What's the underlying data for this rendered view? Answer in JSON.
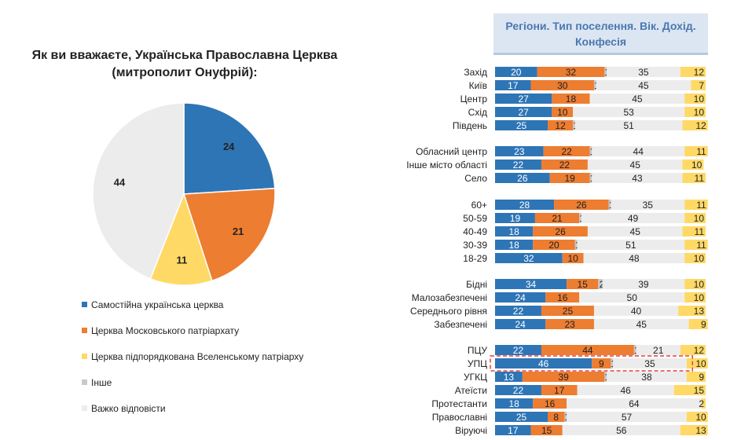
{
  "colors": {
    "independent": "#2e75b6",
    "moscow": "#ed7d31",
    "ecumenical": "#ffd966",
    "other": "#c9c9c9",
    "hard_to_say": "#ececec",
    "header_text": "#4a78b0",
    "highlight": "#e04040"
  },
  "pie": {
    "title_line1": "Як ви вважаєте, Українська Православна Церква",
    "title_line2": "(митрополит Онуфрій):"
  },
  "legend": [
    {
      "label": "Самостійна українська церква",
      "color": "#2e75b6"
    },
    {
      "label": "Церква Московського патріархату",
      "color": "#ed7d31"
    },
    {
      "label": "Церква підпорядкована Вселенському патріарху",
      "color": "#ffd966"
    },
    {
      "label": "Інше",
      "color": "#c9c9c9"
    },
    {
      "label": "Важко відповісти",
      "color": "#ececec"
    }
  ],
  "bar_header": {
    "line1": "Регіони. Тип поселення. Вік. Дохід.",
    "line2": "Конфесія"
  },
  "chart_data": [
    {
      "type": "pie",
      "title": "Як ви вважаєте, Українська Православна Церква (митрополит Онуфрій):",
      "categories": [
        "Самостійна українська церква",
        "Церква Московського патріархату",
        "Церква підпорядкована Вселенському патріарху",
        "Інше",
        "Важко відповісти"
      ],
      "values": [
        24,
        21,
        11,
        0,
        44
      ],
      "data_labels": [
        "24",
        "21",
        "11",
        "",
        "44"
      ]
    },
    {
      "type": "bar",
      "stacked": true,
      "orientation": "horizontal",
      "title": "Регіони. Тип поселення. Вік. Дохід. Конфесія",
      "series_names": [
        "Самостійна українська церква",
        "Церква Московського патріархату",
        "Інше",
        "Важко відповісти",
        "Церква підпорядкована Вселенському патріарху"
      ],
      "groups": [
        {
          "rows": [
            {
              "label": "Захід",
              "values": [
                20,
                32,
                1,
                35,
                12
              ]
            },
            {
              "label": "Київ",
              "values": [
                17,
                30,
                1,
                45,
                7
              ]
            },
            {
              "label": "Центр",
              "values": [
                27,
                18,
                0,
                45,
                10
              ]
            },
            {
              "label": "Схід",
              "values": [
                27,
                10,
                0,
                53,
                10
              ]
            },
            {
              "label": "Південь",
              "values": [
                25,
                12,
                1,
                51,
                12
              ]
            }
          ]
        },
        {
          "rows": [
            {
              "label": "Обласний центр",
              "values": [
                23,
                22,
                1,
                44,
                11
              ]
            },
            {
              "label": "Інше місто області",
              "values": [
                22,
                22,
                0,
                45,
                10
              ]
            },
            {
              "label": "Село",
              "values": [
                26,
                19,
                1,
                43,
                11
              ]
            }
          ]
        },
        {
          "rows": [
            {
              "label": "60+",
              "values": [
                28,
                26,
                1,
                35,
                11
              ]
            },
            {
              "label": "50-59",
              "values": [
                19,
                21,
                1,
                49,
                10
              ]
            },
            {
              "label": "40-49",
              "values": [
                18,
                26,
                0,
                45,
                11
              ]
            },
            {
              "label": "30-39",
              "values": [
                18,
                20,
                1,
                51,
                11
              ]
            },
            {
              "label": "18-29",
              "values": [
                32,
                10,
                0,
                48,
                10
              ]
            }
          ]
        },
        {
          "rows": [
            {
              "label": "Бідні",
              "values": [
                34,
                15,
                2,
                39,
                10
              ]
            },
            {
              "label": "Малозабезпечені",
              "values": [
                24,
                16,
                0,
                50,
                10
              ]
            },
            {
              "label": "Середнього рівня",
              "values": [
                22,
                25,
                0,
                40,
                13
              ]
            },
            {
              "label": "Забезпечені",
              "values": [
                24,
                23,
                0,
                45,
                9
              ]
            }
          ]
        },
        {
          "rows": [
            {
              "label": "ПЦУ",
              "values": [
                22,
                44,
                1,
                21,
                12
              ]
            },
            {
              "label": "УПЦ",
              "values": [
                46,
                9,
                1,
                35,
                10
              ],
              "highlight": true
            },
            {
              "label": "УГКЦ",
              "values": [
                13,
                39,
                1,
                38,
                9
              ]
            },
            {
              "label": "Атеїсти",
              "values": [
                22,
                17,
                0,
                46,
                15
              ]
            },
            {
              "label": "Протестанти",
              "values": [
                18,
                16,
                0,
                64,
                2
              ]
            },
            {
              "label": "Православні",
              "values": [
                25,
                8,
                1,
                57,
                10
              ]
            },
            {
              "label": "Віруючі",
              "values": [
                17,
                15,
                0,
                56,
                13
              ]
            }
          ]
        }
      ]
    }
  ]
}
